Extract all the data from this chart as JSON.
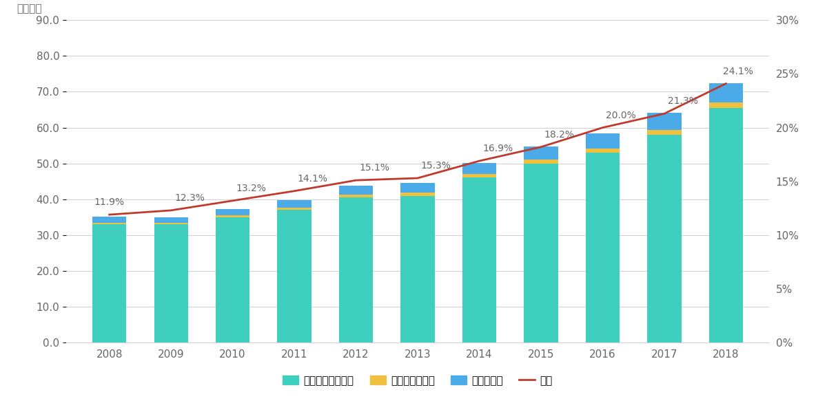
{
  "years": [
    "2008",
    "2009",
    "2010",
    "2011",
    "2012",
    "2013",
    "2014",
    "2015",
    "2016",
    "2017",
    "2018"
  ],
  "credit_card": [
    33.0,
    33.0,
    35.0,
    37.0,
    40.5,
    41.0,
    46.0,
    50.0,
    53.0,
    58.0,
    65.5
  ],
  "debit_card": [
    0.4,
    0.4,
    0.5,
    0.6,
    0.7,
    0.8,
    1.0,
    1.0,
    1.2,
    1.4,
    1.6
  ],
  "e_money": [
    1.7,
    1.6,
    1.8,
    2.2,
    2.5,
    2.8,
    3.2,
    3.8,
    4.2,
    4.8,
    5.2
  ],
  "ratio": [
    11.9,
    12.3,
    13.2,
    14.1,
    15.1,
    15.3,
    16.9,
    18.2,
    20.0,
    21.3,
    24.1
  ],
  "color_credit": "#3ecfbf",
  "color_debit": "#f0c040",
  "color_emoney": "#4baae8",
  "color_ratio": "#c0392b",
  "ylim_left": [
    0,
    90
  ],
  "ylim_right": [
    0,
    30
  ],
  "yticks_left": [
    0.0,
    10.0,
    20.0,
    30.0,
    40.0,
    50.0,
    60.0,
    70.0,
    80.0,
    90.0
  ],
  "yticks_right": [
    0,
    5,
    10,
    15,
    20,
    25,
    30
  ],
  "yticklabels_left": [
    "0.0",
    "10.0",
    "20.0",
    "30.0",
    "40.0",
    "50.0",
    "60.0",
    "70.0",
    "80.0",
    "90.0"
  ],
  "yticklabels_right": [
    "0%",
    "5%",
    "10%",
    "15%",
    "20%",
    "25%",
    "30%"
  ],
  "ylabel_left": "（兆円）",
  "legend_labels": [
    "クレジットカード",
    "デビットカード",
    "電子マネー",
    "比率"
  ],
  "background_color": "#ffffff",
  "grid_color": "#d0d0d0",
  "bar_width": 0.55,
  "tick_color": "#888888",
  "text_color": "#666666"
}
